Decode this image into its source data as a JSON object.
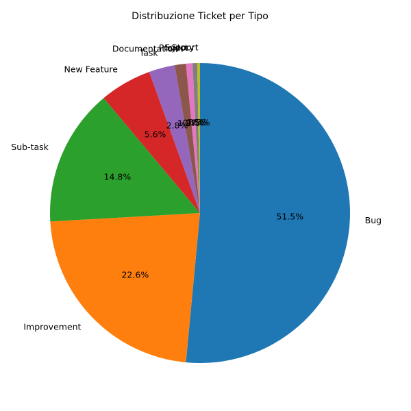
{
  "chart_data": {
    "type": "pie",
    "title": "Distribuzione Ticket per Tipo",
    "start_angle_deg": 90,
    "direction": "clockwise",
    "slices": [
      {
        "label": "Bug",
        "value": 51.5,
        "pct_text": "51.5%",
        "color": "#1f77b4"
      },
      {
        "label": "Improvement",
        "value": 22.6,
        "pct_text": "22.6%",
        "color": "#ff7f0e"
      },
      {
        "label": "Sub-task",
        "value": 14.8,
        "pct_text": "14.8%",
        "color": "#2ca02c"
      },
      {
        "label": "New Feature",
        "value": 5.6,
        "pct_text": "5.6%",
        "color": "#d62728"
      },
      {
        "label": "Task",
        "value": 2.8,
        "pct_text": "2.8%",
        "color": "#9467bd"
      },
      {
        "label": "Documentation",
        "value": 1.2,
        "pct_text": "1.2%",
        "color": "#8c564b"
      },
      {
        "label": "Project",
        "value": 0.7,
        "pct_text": "0.7%",
        "color": "#e377c2"
      },
      {
        "label": "Story",
        "value": 0.5,
        "pct_text": "0.5%",
        "color": "#7f7f7f"
      },
      {
        "label": "Support",
        "value": 0.3,
        "pct_text": "0.3%",
        "color": "#bcbd22"
      }
    ]
  }
}
